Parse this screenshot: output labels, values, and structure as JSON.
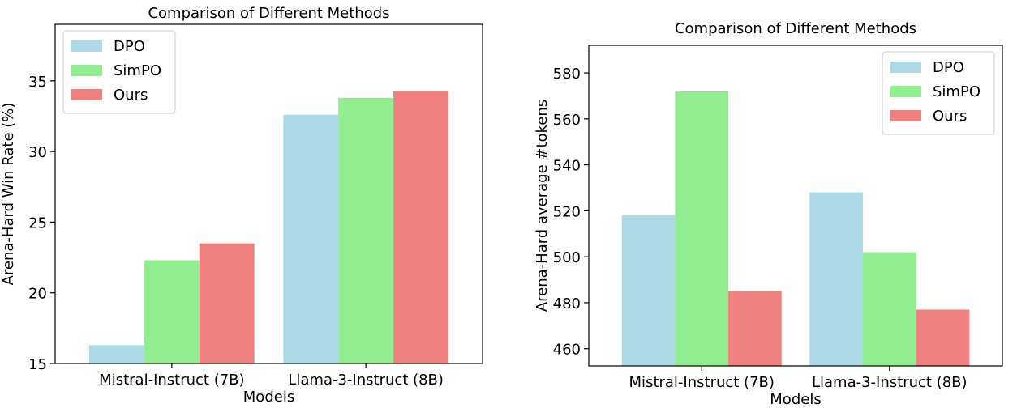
{
  "chart_data": [
    {
      "type": "bar",
      "title": "Comparison of Different Methods",
      "xlabel": "Models",
      "ylabel": "Arena-Hard Win Rate (%)",
      "categories": [
        "Mistral-Instruct (7B)",
        "Llama-3-Instruct (8B)"
      ],
      "series": [
        {
          "name": "DPO",
          "color": "#add8e6",
          "values": [
            16.3,
            32.6
          ]
        },
        {
          "name": "SimPO",
          "color": "#90ee90",
          "values": [
            22.3,
            33.8
          ]
        },
        {
          "name": "Ours",
          "color": "#f08080",
          "values": [
            23.5,
            34.3
          ]
        }
      ],
      "ylim": [
        15,
        39
      ],
      "yticks": [
        15,
        20,
        25,
        30,
        35
      ],
      "legend": "upper left",
      "grid": false
    },
    {
      "type": "bar",
      "title": "Comparison of Different Methods",
      "xlabel": "Models",
      "ylabel": "Arena-Hard average #tokens",
      "categories": [
        "Mistral-Instruct (7B)",
        "Llama-3-Instruct (8B)"
      ],
      "series": [
        {
          "name": "DPO",
          "color": "#add8e6",
          "values": [
            518,
            528
          ]
        },
        {
          "name": "SimPO",
          "color": "#90ee90",
          "values": [
            572,
            502
          ]
        },
        {
          "name": "Ours",
          "color": "#f08080",
          "values": [
            485,
            477
          ]
        }
      ],
      "ylim": [
        452.5,
        592
      ],
      "yticks": [
        460,
        480,
        500,
        520,
        540,
        560,
        580
      ],
      "legend": "upper right",
      "grid": false
    }
  ]
}
